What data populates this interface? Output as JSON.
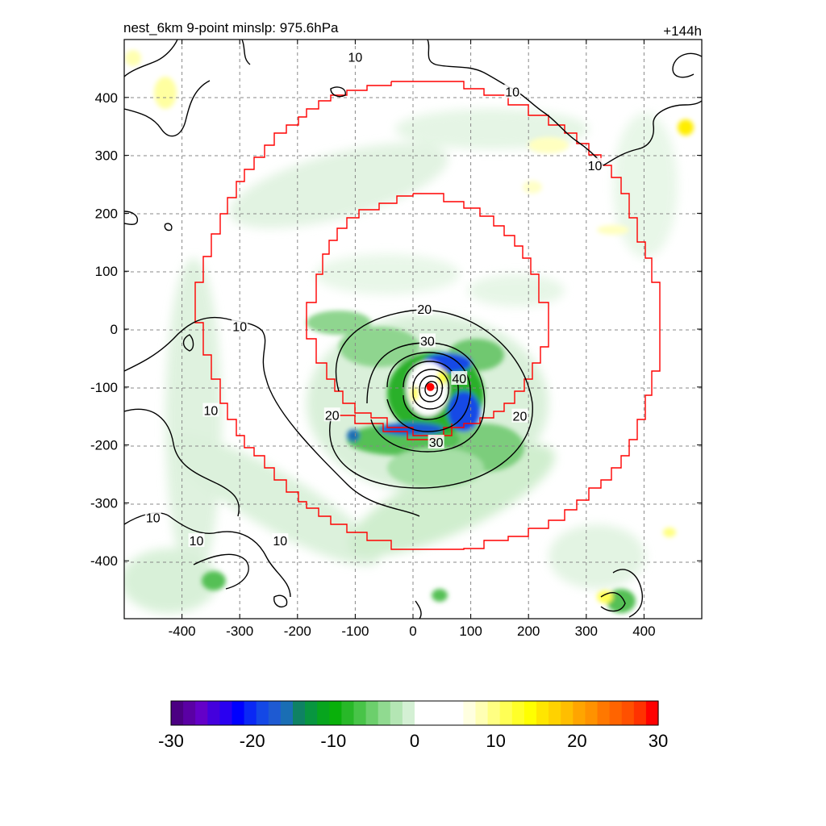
{
  "chart_data": {
    "type": "heatmap",
    "title_left": "nest_6km  9-point minslp: 975.6hPa",
    "title_right": "+144h",
    "xlim": [
      -500,
      500
    ],
    "ylim": [
      -500,
      500
    ],
    "x_ticks": [
      -400,
      -300,
      -200,
      -100,
      0,
      100,
      200,
      300,
      400
    ],
    "y_ticks": [
      400,
      300,
      200,
      100,
      0,
      -100,
      -200,
      -300,
      -400
    ],
    "grid": true,
    "storm_center": [
      30,
      -100
    ],
    "contour_labels": [
      {
        "text": "10",
        "x": -100,
        "y": 470
      },
      {
        "text": "10",
        "x": 172,
        "y": 410
      },
      {
        "text": "10",
        "x": 315,
        "y": 283
      },
      {
        "text": "10",
        "x": -300,
        "y": 5
      },
      {
        "text": "10",
        "x": -350,
        "y": -140
      },
      {
        "text": "10",
        "x": -450,
        "y": -325
      },
      {
        "text": "10",
        "x": -375,
        "y": -365
      },
      {
        "text": "10",
        "x": -230,
        "y": -365
      },
      {
        "text": "20",
        "x": 20,
        "y": 35
      },
      {
        "text": "20",
        "x": -140,
        "y": -148
      },
      {
        "text": "20",
        "x": 185,
        "y": -150
      },
      {
        "text": "30",
        "x": 25,
        "y": -20
      },
      {
        "text": "30",
        "x": 40,
        "y": -195
      },
      {
        "text": "40",
        "x": 80,
        "y": -85
      }
    ],
    "colorbar": {
      "range": [
        -30,
        30
      ],
      "tick_labels": [
        "-30",
        "-20",
        "-10",
        "0",
        "10",
        "20",
        "30"
      ],
      "colors": [
        "#4b0082",
        "#5a00a4",
        "#6400c8",
        "#4400dd",
        "#2a00f0",
        "#0000ff",
        "#0a28f5",
        "#1448e6",
        "#1e5ad2",
        "#1a6eb4",
        "#0f8264",
        "#089640",
        "#07a51e",
        "#09b00a",
        "#28b828",
        "#48c448",
        "#6ccf6c",
        "#90da90",
        "#b4e6b4",
        "#d4f0d4",
        "#ffffff",
        "#ffffff",
        "#ffffff",
        "#ffffff",
        "#ffffe0",
        "#ffffb4",
        "#ffff82",
        "#ffff55",
        "#ffff28",
        "#ffff00",
        "#ffe600",
        "#ffd200",
        "#ffbe00",
        "#ffa500",
        "#ff9200",
        "#ff7800",
        "#ff6400",
        "#ff5000",
        "#ff3200",
        "#ff0000"
      ]
    }
  }
}
